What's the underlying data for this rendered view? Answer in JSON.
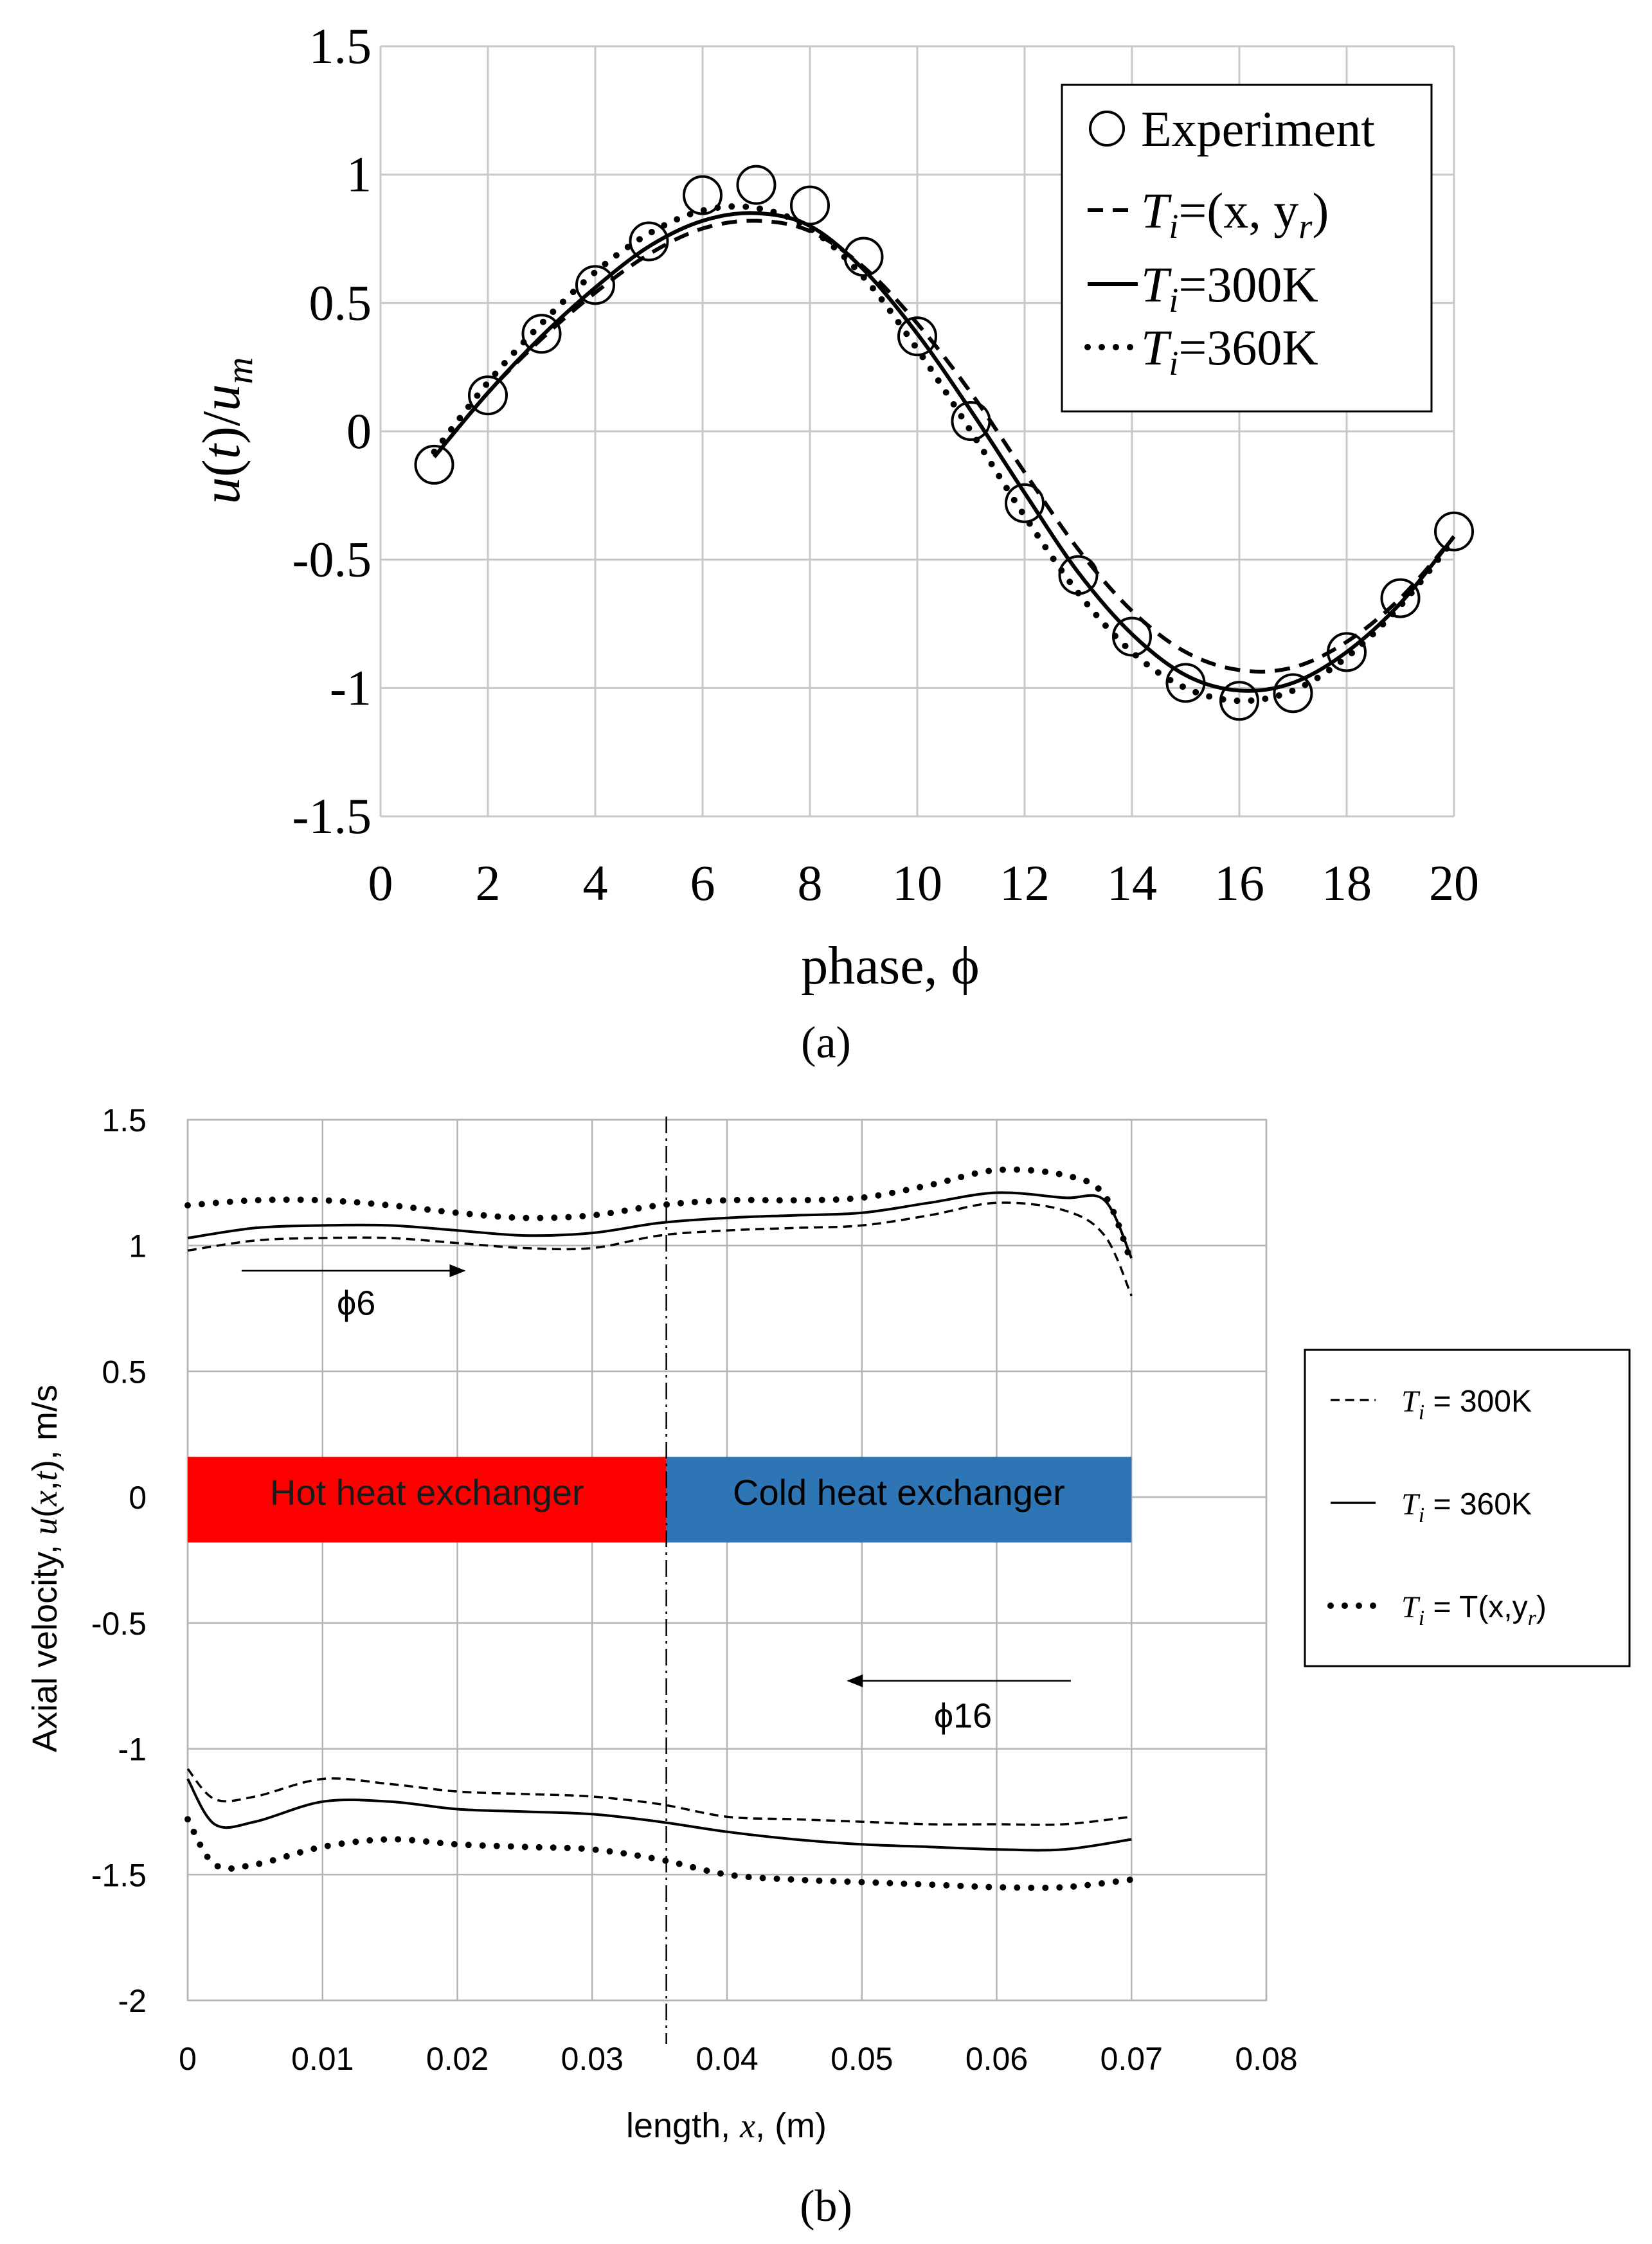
{
  "panels": {
    "a": "(a)",
    "b": "(b)"
  },
  "chart_data": [
    {
      "id": "a",
      "type": "line",
      "panel_label": "(a)",
      "title": "",
      "xlabel": "phase, ϕ",
      "ylabel": "u(t)/u_m",
      "xlim": [
        0,
        20
      ],
      "ylim": [
        -1.5,
        1.5
      ],
      "xticks": [
        0,
        2,
        4,
        6,
        8,
        10,
        12,
        14,
        16,
        18,
        20
      ],
      "yticks": [
        1.5,
        1,
        0.5,
        0,
        -0.5,
        -1,
        -1.5
      ],
      "ytick_labels": [
        "1.5",
        "1",
        "0.5",
        "0",
        "-0.5",
        "-1",
        "-1.5"
      ],
      "grid": true,
      "legend_position": "top-right",
      "series": [
        {
          "name": "Experiment",
          "style": "circles",
          "x": [
            1,
            2,
            3,
            4,
            5,
            6,
            7,
            8,
            9,
            10,
            11,
            12,
            13,
            14,
            15,
            16,
            17,
            18,
            19,
            20
          ],
          "y": [
            -0.13,
            0.14,
            0.38,
            0.57,
            0.74,
            0.92,
            0.96,
            0.88,
            0.68,
            0.37,
            0.04,
            -0.28,
            -0.56,
            -0.8,
            -0.98,
            -1.05,
            -1.02,
            -0.86,
            -0.65,
            -0.39
          ]
        },
        {
          "name": "Ti=(x, yr)",
          "style": "dashed",
          "x": [
            1,
            2,
            3,
            4,
            5,
            6,
            7,
            8,
            9,
            10,
            11,
            12,
            13,
            14,
            15,
            16,
            17,
            18,
            19,
            20
          ],
          "y": [
            -0.1,
            0.15,
            0.36,
            0.54,
            0.69,
            0.79,
            0.82,
            0.78,
            0.64,
            0.42,
            0.15,
            -0.16,
            -0.46,
            -0.7,
            -0.86,
            -0.93,
            -0.92,
            -0.82,
            -0.65,
            -0.41
          ]
        },
        {
          "name": "Ti=300K",
          "style": "solid",
          "x": [
            1,
            2,
            3,
            4,
            5,
            6,
            7,
            8,
            9,
            10,
            11,
            12,
            13,
            14,
            15,
            16,
            17,
            18,
            19,
            20
          ],
          "y": [
            -0.1,
            0.15,
            0.37,
            0.56,
            0.72,
            0.82,
            0.85,
            0.8,
            0.63,
            0.38,
            0.08,
            -0.24,
            -0.55,
            -0.79,
            -0.95,
            -1.01,
            -0.98,
            -0.86,
            -0.67,
            -0.41
          ]
        },
        {
          "name": "Ti=360K",
          "style": "dotted",
          "x": [
            1,
            2,
            3,
            4,
            5,
            6,
            7,
            8,
            9,
            10,
            11,
            12,
            13,
            14,
            15,
            16,
            17,
            18,
            19,
            20
          ],
          "y": [
            -0.08,
            0.19,
            0.42,
            0.62,
            0.77,
            0.86,
            0.87,
            0.79,
            0.6,
            0.32,
            0.0,
            -0.33,
            -0.63,
            -0.86,
            -1.0,
            -1.05,
            -1.01,
            -0.88,
            -0.68,
            -0.42
          ]
        }
      ],
      "legend": [
        {
          "prefix": "",
          "symbol": "Experiment",
          "rest": ""
        },
        {
          "prefix": "T",
          "sub": "i",
          "rest": "=(x, y",
          "sub2": "r",
          "tail": ")"
        },
        {
          "prefix": "T",
          "sub": "i",
          "rest": "=300K"
        },
        {
          "prefix": "T",
          "sub": "i",
          "rest": "=360K"
        }
      ]
    },
    {
      "id": "b",
      "type": "line",
      "panel_label": "(b)",
      "title": "",
      "xlabel": "length, x, (m)",
      "ylabel": "Axial velocity, u(x,t), m/s",
      "xlim": [
        0,
        0.08
      ],
      "ylim": [
        -2,
        1.5
      ],
      "xticks": [
        0,
        0.01,
        0.02,
        0.03,
        0.04,
        0.05,
        0.06,
        0.07,
        0.08
      ],
      "xtick_labels": [
        "0",
        "0.01",
        "0.02",
        "0.03",
        "0.04",
        "0.05",
        "0.06",
        "0.07",
        "0.08"
      ],
      "yticks": [
        1.5,
        1,
        0.5,
        0,
        -0.5,
        -1,
        -1.5,
        -2
      ],
      "ytick_labels": [
        "1.5",
        "1",
        "0.5",
        "0",
        "-0.5",
        "-1",
        "-1.5",
        "-2"
      ],
      "grid": true,
      "legend_position": "right",
      "divider_x": 0.0355,
      "regions": [
        {
          "label": "Hot heat exchanger",
          "x0": 0,
          "x1": 0.0355,
          "y0": -0.18,
          "y1": 0.16,
          "color": "#ff0000"
        },
        {
          "label": "Cold heat exchanger",
          "x0": 0.0355,
          "x1": 0.07,
          "y0": -0.18,
          "y1": 0.16,
          "color": "#2e75b6"
        }
      ],
      "annotations": [
        {
          "label": "ϕ6",
          "arrow_from": [
            0.004,
            0.9
          ],
          "arrow_to": [
            0.0205,
            0.9
          ],
          "text_at": [
            0.0125,
            0.77
          ]
        },
        {
          "label": "ϕ16",
          "arrow_from": [
            0.0655,
            -0.73
          ],
          "arrow_to": [
            0.049,
            -0.73
          ],
          "text_at": [
            0.0575,
            -0.87
          ]
        }
      ],
      "legend": [
        {
          "style": "dashed",
          "prefix": "T",
          "sub": "i",
          "rest": " = 300K"
        },
        {
          "style": "solid",
          "prefix": "T",
          "sub": "i",
          "rest": " = 360K"
        },
        {
          "style": "dotted",
          "prefix": "T",
          "sub": "i",
          "rest": " = T(x,y",
          "sub2": "r",
          "tail": ")"
        }
      ],
      "series": [
        {
          "name": "Ti = 300K (phase 6)",
          "style": "dashed",
          "x": [
            0,
            0.005,
            0.01,
            0.015,
            0.02,
            0.025,
            0.03,
            0.035,
            0.04,
            0.045,
            0.05,
            0.055,
            0.06,
            0.065,
            0.068,
            0.07
          ],
          "y": [
            0.98,
            1.02,
            1.03,
            1.03,
            1.01,
            0.99,
            0.99,
            1.04,
            1.06,
            1.07,
            1.08,
            1.12,
            1.17,
            1.14,
            1.04,
            0.8
          ]
        },
        {
          "name": "Ti = 360K (phase 6)",
          "style": "solid",
          "x": [
            0,
            0.005,
            0.01,
            0.015,
            0.02,
            0.025,
            0.03,
            0.035,
            0.04,
            0.045,
            0.05,
            0.055,
            0.06,
            0.065,
            0.068,
            0.07
          ],
          "y": [
            1.03,
            1.07,
            1.08,
            1.08,
            1.06,
            1.04,
            1.05,
            1.09,
            1.11,
            1.12,
            1.13,
            1.17,
            1.21,
            1.19,
            1.18,
            0.95
          ]
        },
        {
          "name": "Ti = T(x,yr) (phase 6)",
          "style": "dotted",
          "x": [
            0,
            0.005,
            0.01,
            0.015,
            0.02,
            0.025,
            0.03,
            0.035,
            0.04,
            0.045,
            0.05,
            0.055,
            0.06,
            0.065,
            0.068,
            0.07
          ],
          "y": [
            1.16,
            1.18,
            1.18,
            1.16,
            1.13,
            1.11,
            1.12,
            1.16,
            1.18,
            1.18,
            1.19,
            1.24,
            1.3,
            1.28,
            1.2,
            0.93
          ]
        },
        {
          "name": "Ti = 300K (phase 16)",
          "style": "dashed",
          "x": [
            0,
            0.002,
            0.005,
            0.01,
            0.015,
            0.02,
            0.025,
            0.03,
            0.035,
            0.04,
            0.045,
            0.05,
            0.055,
            0.06,
            0.065,
            0.07
          ],
          "y": [
            -1.08,
            -1.2,
            -1.19,
            -1.12,
            -1.14,
            -1.17,
            -1.18,
            -1.19,
            -1.22,
            -1.27,
            -1.28,
            -1.29,
            -1.3,
            -1.3,
            -1.3,
            -1.27
          ]
        },
        {
          "name": "Ti = 360K (phase 16)",
          "style": "solid",
          "x": [
            0,
            0.002,
            0.005,
            0.01,
            0.015,
            0.02,
            0.025,
            0.03,
            0.035,
            0.04,
            0.045,
            0.05,
            0.055,
            0.06,
            0.065,
            0.07
          ],
          "y": [
            -1.12,
            -1.3,
            -1.29,
            -1.21,
            -1.21,
            -1.24,
            -1.25,
            -1.26,
            -1.29,
            -1.33,
            -1.36,
            -1.38,
            -1.39,
            -1.4,
            -1.4,
            -1.36
          ]
        },
        {
          "name": "Ti = T(x,yr) (phase 16)",
          "style": "dotted",
          "x": [
            0,
            0.002,
            0.005,
            0.01,
            0.015,
            0.02,
            0.025,
            0.03,
            0.035,
            0.04,
            0.045,
            0.05,
            0.055,
            0.06,
            0.065,
            0.07
          ],
          "y": [
            -1.28,
            -1.46,
            -1.46,
            -1.39,
            -1.36,
            -1.38,
            -1.39,
            -1.4,
            -1.44,
            -1.5,
            -1.52,
            -1.53,
            -1.54,
            -1.55,
            -1.55,
            -1.52
          ]
        }
      ]
    }
  ]
}
